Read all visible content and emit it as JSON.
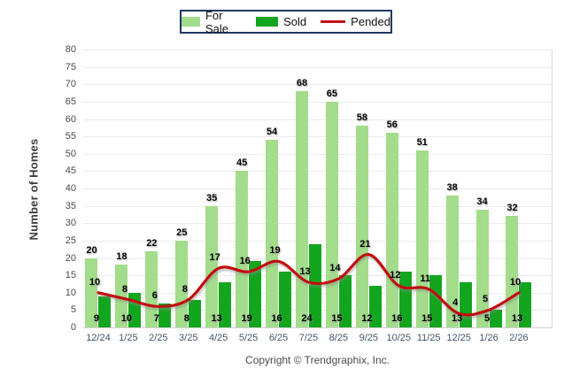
{
  "legend": {
    "items": [
      {
        "label": "For Sale",
        "color": "#A3DC8B",
        "swatch": "box"
      },
      {
        "label": "Sold",
        "color": "#12A51E",
        "swatch": "box"
      },
      {
        "label": "Pended",
        "color": "#C00F0F",
        "swatch": "line"
      }
    ],
    "border_color": "#1F3864"
  },
  "chart_data": {
    "type": "bar",
    "categories": [
      "12/24",
      "1/25",
      "2/25",
      "3/25",
      "4/25",
      "5/25",
      "6/25",
      "7/25",
      "8/25",
      "9/25",
      "10/25",
      "11/25",
      "12/25",
      "1/26",
      "2/26"
    ],
    "series": [
      {
        "name": "For Sale",
        "type": "bar",
        "color": "#A3DC8B",
        "values": [
          20,
          18,
          22,
          25,
          35,
          45,
          54,
          68,
          65,
          58,
          56,
          51,
          38,
          34,
          32
        ]
      },
      {
        "name": "Sold",
        "type": "bar",
        "color": "#12A51E",
        "values": [
          9,
          10,
          7,
          8,
          13,
          19,
          16,
          24,
          15,
          12,
          16,
          15,
          13,
          5,
          13
        ]
      },
      {
        "name": "Pended",
        "type": "line",
        "color": "#C00F0F",
        "values": [
          10,
          8,
          6,
          8,
          17,
          16,
          19,
          13,
          14,
          21,
          12,
          11,
          4,
          5,
          10
        ]
      }
    ],
    "title": "",
    "xlabel": "",
    "ylabel": "Number of Homes",
    "ylim": [
      0,
      80
    ],
    "ytick_step": 5,
    "grid": true,
    "legend_position": "top-center",
    "data_labels": true
  },
  "footer": {
    "copyright": "Copyright © Trendgraphix, Inc."
  }
}
